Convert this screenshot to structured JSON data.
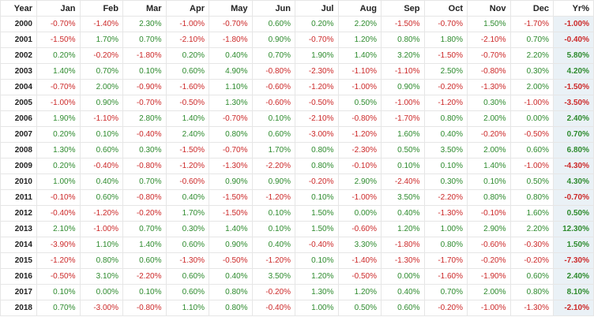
{
  "colors": {
    "positive": "#2e8b2e",
    "negative": "#cc2929",
    "zero": "#2e8b2e",
    "yearly_bg": "#eaf1f6",
    "header_text": "#222222"
  },
  "chart_data": {
    "type": "table",
    "columns": [
      "Year",
      "Jan",
      "Feb",
      "Mar",
      "Apr",
      "May",
      "Jun",
      "Jul",
      "Aug",
      "Sep",
      "Oct",
      "Nov",
      "Dec",
      "Yr%"
    ],
    "rows": [
      {
        "year": "2000",
        "months": [
          "-0.70%",
          "-1.40%",
          "2.30%",
          "-1.00%",
          "-0.70%",
          "0.60%",
          "0.20%",
          "2.20%",
          "-1.50%",
          "-0.70%",
          "1.50%",
          "-1.70%"
        ],
        "yearly": "-1.00%"
      },
      {
        "year": "2001",
        "months": [
          "-1.50%",
          "1.70%",
          "0.70%",
          "-2.10%",
          "-1.80%",
          "0.90%",
          "-0.70%",
          "1.20%",
          "0.80%",
          "1.80%",
          "-2.10%",
          "0.70%"
        ],
        "yearly": "-0.40%"
      },
      {
        "year": "2002",
        "months": [
          "0.20%",
          "-0.20%",
          "-1.80%",
          "0.20%",
          "0.40%",
          "0.70%",
          "1.90%",
          "1.40%",
          "3.20%",
          "-1.50%",
          "-0.70%",
          "2.20%"
        ],
        "yearly": "5.80%"
      },
      {
        "year": "2003",
        "months": [
          "1.40%",
          "0.70%",
          "0.10%",
          "0.60%",
          "4.90%",
          "-0.80%",
          "-2.30%",
          "-1.10%",
          "-1.10%",
          "2.50%",
          "-0.80%",
          "0.30%"
        ],
        "yearly": "4.20%"
      },
      {
        "year": "2004",
        "months": [
          "-0.70%",
          "2.00%",
          "-0.90%",
          "-1.60%",
          "1.10%",
          "-0.60%",
          "-1.20%",
          "-1.00%",
          "0.90%",
          "-0.20%",
          "-1.30%",
          "2.00%"
        ],
        "yearly": "-1.50%"
      },
      {
        "year": "2005",
        "months": [
          "-1.00%",
          "0.90%",
          "-0.70%",
          "-0.50%",
          "1.30%",
          "-0.60%",
          "-0.50%",
          "0.50%",
          "-1.00%",
          "-1.20%",
          "0.30%",
          "-1.00%"
        ],
        "yearly": "-3.50%"
      },
      {
        "year": "2006",
        "months": [
          "1.90%",
          "-1.10%",
          "2.80%",
          "1.40%",
          "-0.70%",
          "0.10%",
          "-2.10%",
          "-0.80%",
          "-1.70%",
          "0.80%",
          "2.00%",
          "0.00%"
        ],
        "yearly": "2.40%"
      },
      {
        "year": "2007",
        "months": [
          "0.20%",
          "0.10%",
          "-0.40%",
          "2.40%",
          "0.80%",
          "0.60%",
          "-3.00%",
          "-1.20%",
          "1.60%",
          "0.40%",
          "-0.20%",
          "-0.50%"
        ],
        "yearly": "0.70%"
      },
      {
        "year": "2008",
        "months": [
          "1.30%",
          "0.60%",
          "0.30%",
          "-1.50%",
          "-0.70%",
          "1.70%",
          "0.80%",
          "-2.30%",
          "0.50%",
          "3.50%",
          "2.00%",
          "0.60%"
        ],
        "yearly": "6.80%"
      },
      {
        "year": "2009",
        "months": [
          "0.20%",
          "-0.40%",
          "-0.80%",
          "-1.20%",
          "-1.30%",
          "-2.20%",
          "0.80%",
          "-0.10%",
          "0.10%",
          "0.10%",
          "1.40%",
          "-1.00%"
        ],
        "yearly": "-4.30%"
      },
      {
        "year": "2010",
        "months": [
          "1.00%",
          "0.40%",
          "0.70%",
          "-0.60%",
          "0.90%",
          "0.90%",
          "-0.20%",
          "2.90%",
          "-2.40%",
          "0.30%",
          "0.10%",
          "0.50%"
        ],
        "yearly": "4.30%"
      },
      {
        "year": "2011",
        "months": [
          "-0.10%",
          "0.60%",
          "-0.80%",
          "0.40%",
          "-1.50%",
          "-1.20%",
          "0.10%",
          "-1.00%",
          "3.50%",
          "-2.20%",
          "0.80%",
          "0.80%"
        ],
        "yearly": "-0.70%"
      },
      {
        "year": "2012",
        "months": [
          "-0.40%",
          "-1.20%",
          "-0.20%",
          "1.70%",
          "-1.50%",
          "0.10%",
          "1.50%",
          "0.00%",
          "0.40%",
          "-1.30%",
          "-0.10%",
          "1.60%"
        ],
        "yearly": "0.50%"
      },
      {
        "year": "2013",
        "months": [
          "2.10%",
          "-1.00%",
          "0.70%",
          "0.30%",
          "1.40%",
          "0.10%",
          "1.50%",
          "-0.60%",
          "1.20%",
          "1.00%",
          "2.90%",
          "2.20%"
        ],
        "yearly": "12.30%"
      },
      {
        "year": "2014",
        "months": [
          "-3.90%",
          "1.10%",
          "1.40%",
          "0.60%",
          "0.90%",
          "0.40%",
          "-0.40%",
          "3.30%",
          "-1.80%",
          "0.80%",
          "-0.60%",
          "-0.30%"
        ],
        "yearly": "1.50%"
      },
      {
        "year": "2015",
        "months": [
          "-1.20%",
          "0.80%",
          "0.60%",
          "-1.30%",
          "-0.50%",
          "-1.20%",
          "0.10%",
          "-1.40%",
          "-1.30%",
          "-1.70%",
          "-0.20%",
          "-0.20%"
        ],
        "yearly": "-7.30%"
      },
      {
        "year": "2016",
        "months": [
          "-0.50%",
          "3.10%",
          "-2.20%",
          "0.60%",
          "0.40%",
          "3.50%",
          "1.20%",
          "-0.50%",
          "0.00%",
          "-1.60%",
          "-1.90%",
          "0.60%"
        ],
        "yearly": "2.40%"
      },
      {
        "year": "2017",
        "months": [
          "0.10%",
          "0.00%",
          "0.10%",
          "0.60%",
          "0.80%",
          "-0.20%",
          "1.30%",
          "1.20%",
          "0.40%",
          "0.70%",
          "2.00%",
          "0.80%"
        ],
        "yearly": "8.10%"
      },
      {
        "year": "2018",
        "months": [
          "0.70%",
          "-3.00%",
          "-0.80%",
          "1.10%",
          "0.80%",
          "-0.40%",
          "1.00%",
          "0.50%",
          "0.60%",
          "-0.20%",
          "-1.00%",
          "-1.30%"
        ],
        "yearly": "-2.10%"
      }
    ]
  }
}
